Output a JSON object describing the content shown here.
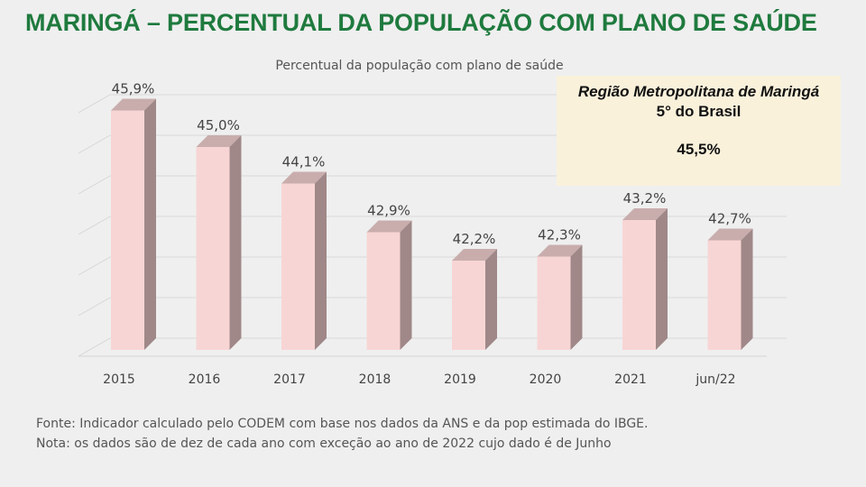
{
  "slide": {
    "title": "MARINGÁ – PERCENTUAL DA POPULAÇÃO COM PLANO DE SAÚDE"
  },
  "callout": {
    "region": "Região Metropolitana de Maringá",
    "rank": "5° do Brasil",
    "value": "45,5%"
  },
  "notes": {
    "source": "Fonte: Indicador calculado pelo CODEM com base nos dados da  ANS e da pop estimada do IBGE.",
    "note": "Nota: os dados são de dez de cada ano com exceção ao ano de 2022 cujo dado é de Junho"
  },
  "colors": {
    "title": "#1f7a3e",
    "bar_front": "#f8d5d5",
    "bar_side": "#a08888",
    "bar_top": "#c9adad",
    "callout_bg": "#faf1db"
  },
  "chart_data": {
    "type": "bar",
    "title": "Percentual da população com plano de saúde",
    "categories": [
      "2015",
      "2016",
      "2017",
      "2018",
      "2019",
      "2020",
      "2021",
      "jun/22"
    ],
    "values": [
      45.9,
      45.0,
      44.1,
      42.9,
      42.2,
      42.3,
      43.2,
      42.7
    ],
    "data_labels": [
      "45,9%",
      "45,0%",
      "44,1%",
      "42,9%",
      "42,2%",
      "42,3%",
      "43,2%",
      "42,7%"
    ],
    "xlabel": "",
    "ylabel": "",
    "ylim": [
      40.0,
      46.0
    ],
    "grid": true,
    "style": "3d-column"
  }
}
